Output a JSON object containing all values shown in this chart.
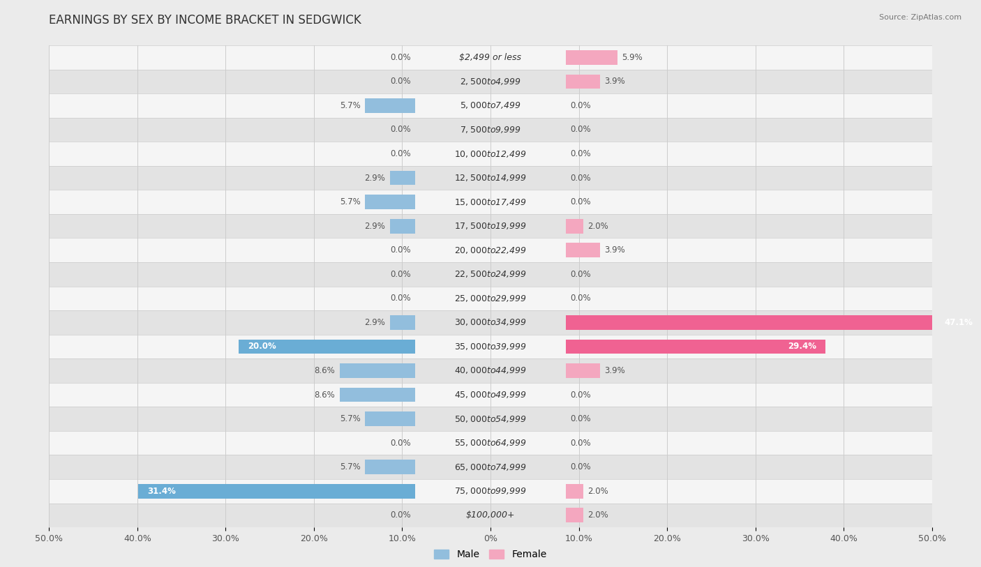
{
  "title": "EARNINGS BY SEX BY INCOME BRACKET IN SEDGWICK",
  "source": "Source: ZipAtlas.com",
  "categories": [
    "$2,499 or less",
    "$2,500 to $4,999",
    "$5,000 to $7,499",
    "$7,500 to $9,999",
    "$10,000 to $12,499",
    "$12,500 to $14,999",
    "$15,000 to $17,499",
    "$17,500 to $19,999",
    "$20,000 to $22,499",
    "$22,500 to $24,999",
    "$25,000 to $29,999",
    "$30,000 to $34,999",
    "$35,000 to $39,999",
    "$40,000 to $44,999",
    "$45,000 to $49,999",
    "$50,000 to $54,999",
    "$55,000 to $64,999",
    "$65,000 to $74,999",
    "$75,000 to $99,999",
    "$100,000+"
  ],
  "male": [
    0.0,
    0.0,
    5.7,
    0.0,
    0.0,
    2.9,
    5.7,
    2.9,
    0.0,
    0.0,
    0.0,
    2.9,
    20.0,
    8.6,
    8.6,
    5.7,
    0.0,
    5.7,
    31.4,
    0.0
  ],
  "female": [
    5.9,
    3.9,
    0.0,
    0.0,
    0.0,
    0.0,
    0.0,
    2.0,
    3.9,
    0.0,
    0.0,
    47.1,
    29.4,
    3.9,
    0.0,
    0.0,
    0.0,
    0.0,
    2.0,
    2.0
  ],
  "male_color_normal": "#92bedd",
  "male_color_large": "#6aadd5",
  "female_color_normal": "#f4a7bf",
  "female_color_large": "#f06292",
  "axis_limit": 50.0,
  "bg_color": "#ebebeb",
  "row_bg_light": "#f5f5f5",
  "row_bg_dark": "#e3e3e3",
  "bar_height": 0.6,
  "title_fontsize": 12,
  "label_fontsize": 9,
  "tick_fontsize": 9,
  "value_fontsize": 8.5
}
